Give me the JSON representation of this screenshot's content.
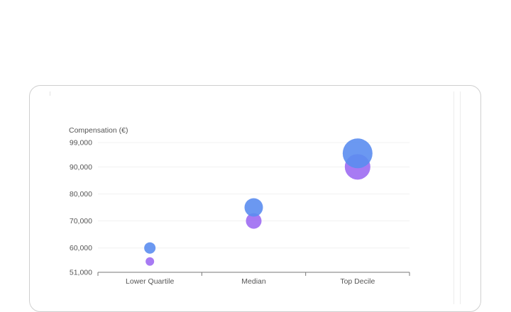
{
  "chart_data": {
    "type": "scatter",
    "title": "",
    "ylabel": "Compensation (€)",
    "xlabel": "",
    "categories": [
      "Lower Quartile",
      "Median",
      "Top Decile"
    ],
    "ylim": [
      51000,
      99000
    ],
    "yticks": [
      {
        "value": 51000,
        "label": "51,000"
      },
      {
        "value": 60000,
        "label": "60,000"
      },
      {
        "value": 70000,
        "label": "70,000"
      },
      {
        "value": 80000,
        "label": "80,000"
      },
      {
        "value": 90000,
        "label": "90,000"
      },
      {
        "value": 99000,
        "label": "99,000"
      }
    ],
    "grid": true,
    "series": [
      {
        "color": "#5b8def",
        "values": [
          60000,
          75000,
          95000
        ],
        "sizes": [
          8,
          13,
          21
        ]
      },
      {
        "color": "#9d6cf2",
        "values": [
          55000,
          70000,
          90000
        ],
        "sizes": [
          6,
          11,
          18
        ]
      }
    ]
  }
}
